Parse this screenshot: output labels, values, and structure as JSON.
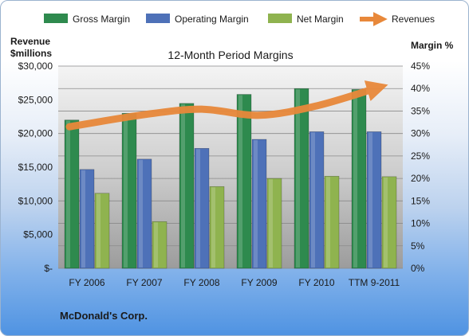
{
  "chart_data": {
    "type": "bar",
    "title": "12-Month Period Margins",
    "company": "McDonald's Corp.",
    "categories": [
      "FY 2006",
      "FY 2007",
      "FY 2008",
      "FY 2009",
      "FY 2010",
      "TTM 9-2011"
    ],
    "series": [
      {
        "name": "Gross Margin",
        "axis": "right",
        "color": "#2e8a4e",
        "values": [
          33.0,
          34.5,
          36.7,
          38.7,
          40.0,
          39.8
        ]
      },
      {
        "name": "Operating Margin",
        "axis": "right",
        "color": "#4e71b8",
        "values": [
          22.0,
          24.3,
          26.7,
          28.7,
          30.4,
          30.4
        ]
      },
      {
        "name": "Net Margin",
        "axis": "right",
        "color": "#8fb34f",
        "values": [
          16.7,
          10.4,
          18.2,
          20.0,
          20.5,
          20.4
        ]
      }
    ],
    "revenues": {
      "name": "Revenues",
      "axis": "left",
      "color": "#e8883a",
      "values": [
        21000,
        22800,
        23600,
        22700,
        24100,
        26700
      ]
    },
    "y_left": {
      "label_line1": "Revenue",
      "label_line2": "$millions",
      "min": 0,
      "max": 30000,
      "step": 5000,
      "ticks": [
        "$-",
        "$5,000",
        "$10,000",
        "$15,000",
        "$20,000",
        "$25,000",
        "$30,000"
      ]
    },
    "y_right": {
      "label": "Margin %",
      "min": 0,
      "max": 45,
      "step": 5,
      "ticks": [
        "0%",
        "5%",
        "10%",
        "15%",
        "20%",
        "25%",
        "30%",
        "35%",
        "40%",
        "45%"
      ]
    },
    "legend_position": "top",
    "grid": true
  }
}
